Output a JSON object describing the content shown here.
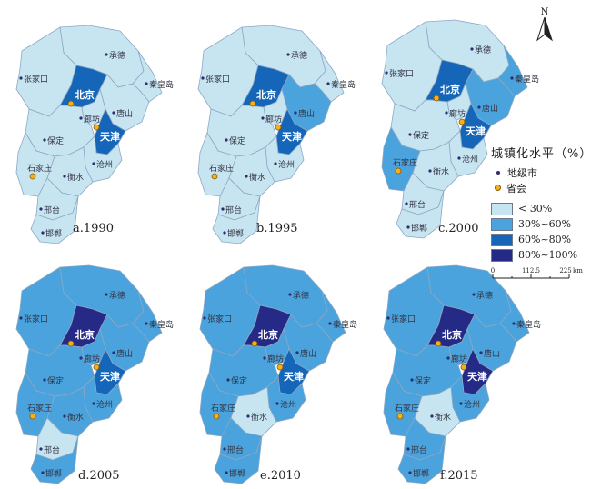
{
  "colors": {
    "class_lt30": "#c7e4f1",
    "class_30_60": "#4aa3dc",
    "class_60_80": "#1565b8",
    "class_80_100": "#252a86",
    "border": "#8da8c4",
    "city_dot": "#2b2f6b",
    "capital_dot": "#f3b11d"
  },
  "legend": {
    "title": "城镇化水平（%）",
    "city_marker": "地级市",
    "capital_marker": "省会",
    "classes": [
      {
        "key": "lt30",
        "label": "< 30%"
      },
      {
        "key": "30_60",
        "label": "30%~60%"
      },
      {
        "key": "60_80",
        "label": "60%~80%"
      },
      {
        "key": "80_100",
        "label": "80%~100%"
      }
    ]
  },
  "north_arrow": "N",
  "scale_bar": {
    "ticks": [
      "0",
      "112.5",
      "225"
    ],
    "unit": "km"
  },
  "cities": [
    "承德",
    "张家口",
    "秦皇岛",
    "北京",
    "唐山",
    "廊坊",
    "天津",
    "保定",
    "沧州",
    "石家庄",
    "衡水",
    "邢台",
    "邯郸"
  ],
  "panels": [
    {
      "label": "a.1990",
      "classes": {
        "承德": "lt30",
        "张家口": "lt30",
        "秦皇岛": "lt30",
        "北京": "60_80",
        "唐山": "lt30",
        "廊坊": "lt30",
        "天津": "60_80",
        "保定": "lt30",
        "沧州": "lt30",
        "石家庄": "lt30",
        "衡水": "lt30",
        "邢台": "lt30",
        "邯郸": "lt30"
      }
    },
    {
      "label": "b.1995",
      "classes": {
        "承德": "lt30",
        "张家口": "lt30",
        "秦皇岛": "lt30",
        "北京": "60_80",
        "唐山": "30_60",
        "廊坊": "lt30",
        "天津": "60_80",
        "保定": "lt30",
        "沧州": "lt30",
        "石家庄": "lt30",
        "衡水": "lt30",
        "邢台": "lt30",
        "邯郸": "lt30"
      }
    },
    {
      "label": "c.2000",
      "classes": {
        "承德": "lt30",
        "张家口": "lt30",
        "秦皇岛": "30_60",
        "北京": "60_80",
        "唐山": "30_60",
        "廊坊": "lt30",
        "天津": "60_80",
        "保定": "lt30",
        "沧州": "lt30",
        "石家庄": "30_60",
        "衡水": "lt30",
        "邢台": "lt30",
        "邯郸": "lt30"
      }
    },
    {
      "label": "d.2005",
      "classes": {
        "承德": "30_60",
        "张家口": "30_60",
        "秦皇岛": "30_60",
        "北京": "80_100",
        "唐山": "30_60",
        "廊坊": "30_60",
        "天津": "60_80",
        "保定": "30_60",
        "沧州": "30_60",
        "石家庄": "30_60",
        "衡水": "30_60",
        "邢台": "lt30",
        "邯郸": "30_60"
      }
    },
    {
      "label": "e.2010",
      "classes": {
        "承德": "30_60",
        "张家口": "30_60",
        "秦皇岛": "30_60",
        "北京": "80_100",
        "唐山": "30_60",
        "廊坊": "30_60",
        "天津": "60_80",
        "保定": "30_60",
        "沧州": "30_60",
        "石家庄": "30_60",
        "衡水": "lt30",
        "邢台": "30_60",
        "邯郸": "30_60"
      }
    },
    {
      "label": "f.2015",
      "classes": {
        "承德": "30_60",
        "张家口": "30_60",
        "秦皇岛": "30_60",
        "北京": "80_100",
        "唐山": "30_60",
        "廊坊": "30_60",
        "天津": "80_100",
        "保定": "30_60",
        "沧州": "30_60",
        "石家庄": "30_60",
        "衡水": "lt30",
        "邢台": "30_60",
        "邯郸": "30_60"
      }
    }
  ]
}
